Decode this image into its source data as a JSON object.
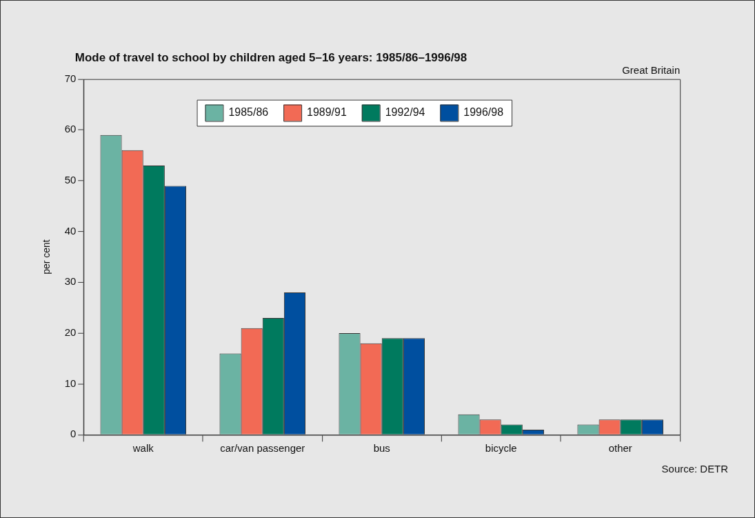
{
  "chart_data": {
    "type": "bar",
    "title": "Mode of travel to school by children aged 5–16 years: 1985/86–1996/98",
    "ylabel": "per cent",
    "categories": [
      "walk",
      "car/van passenger",
      "bus",
      "bicycle",
      "other"
    ],
    "series": [
      {
        "name": "1985/86",
        "color": "#6bb3a3",
        "values": [
          59,
          16,
          20,
          4,
          2
        ]
      },
      {
        "name": "1989/91",
        "color": "#f26a55",
        "values": [
          56,
          21,
          18,
          3,
          3
        ]
      },
      {
        "name": "1992/94",
        "color": "#007a5e",
        "values": [
          53,
          23,
          19,
          2,
          3
        ]
      },
      {
        "name": "1996/98",
        "color": "#004f9f",
        "values": [
          49,
          28,
          19,
          1,
          3
        ]
      }
    ],
    "ylim": [
      0,
      70
    ],
    "yticks": [
      0,
      10,
      20,
      30,
      40,
      50,
      60,
      70
    ],
    "grid": false,
    "legend": "top",
    "annotations": [
      "Great Britain",
      "Source: DETR"
    ]
  }
}
